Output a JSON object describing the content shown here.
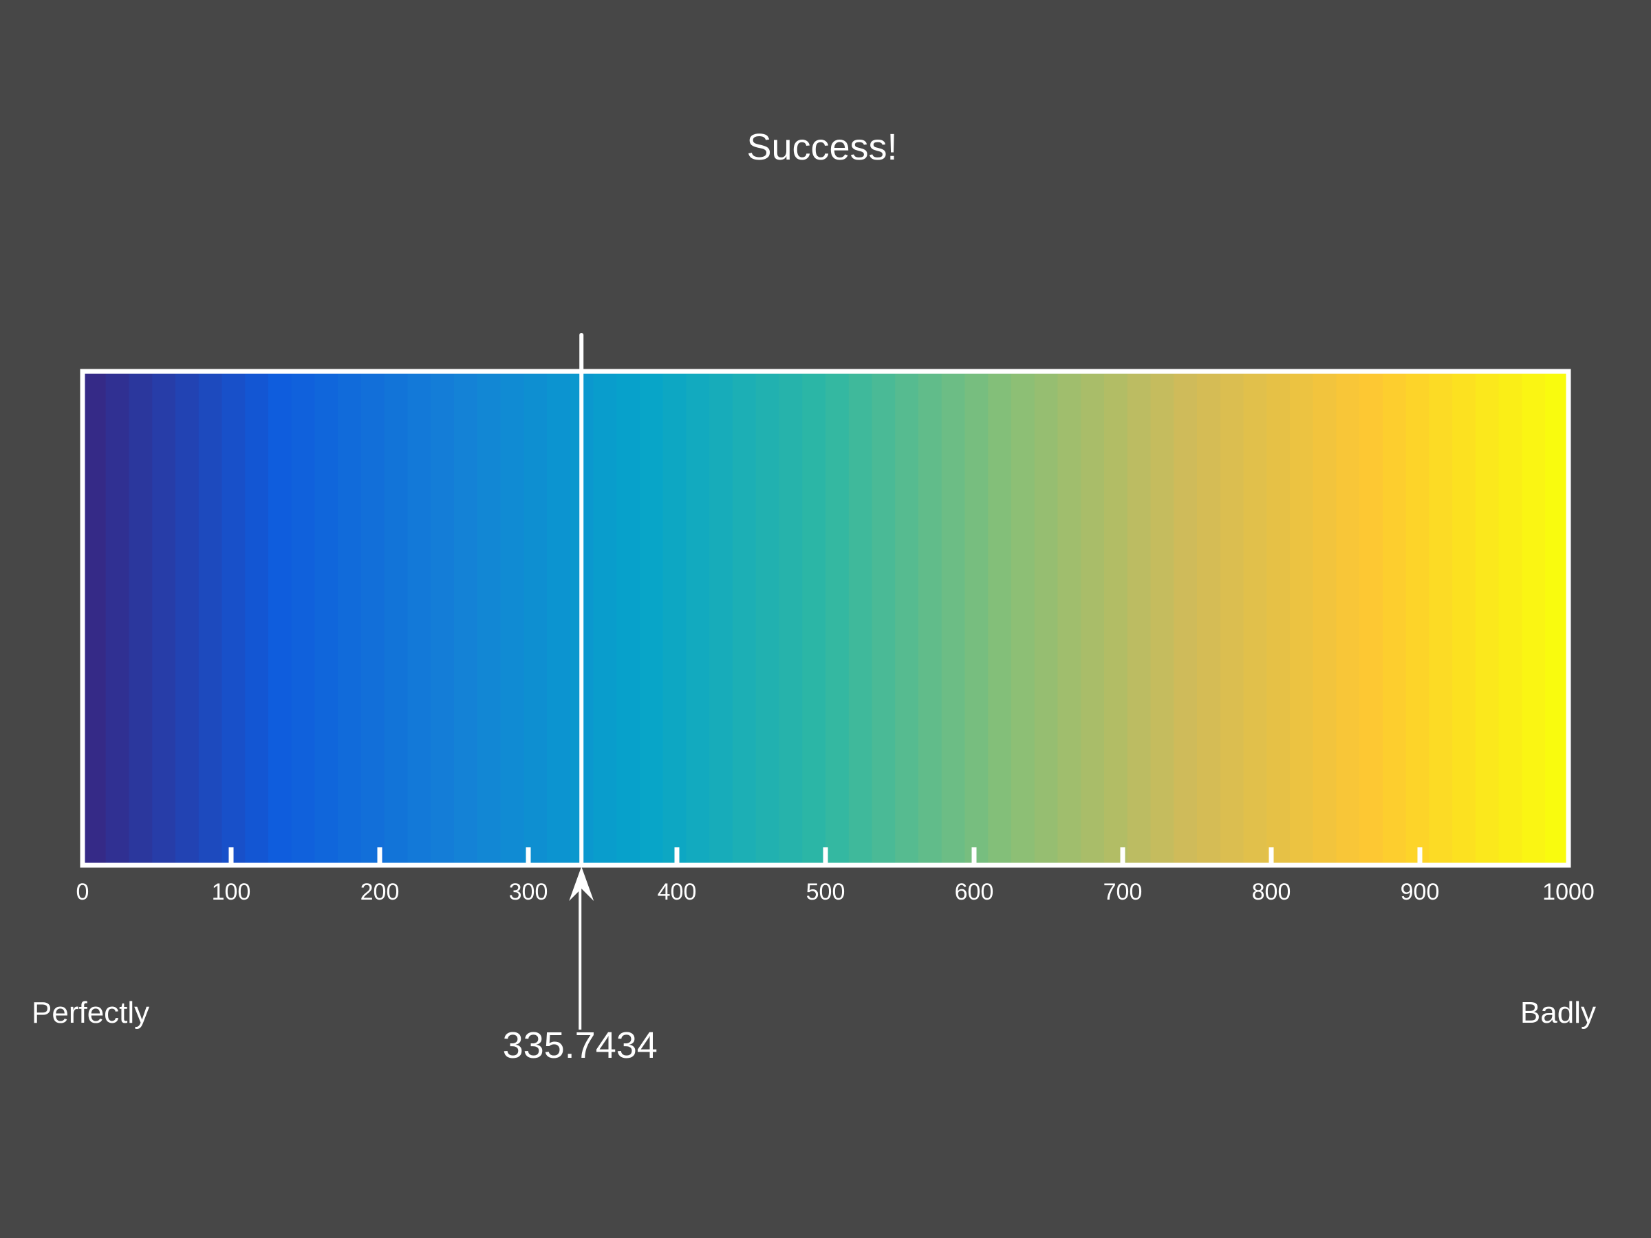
{
  "title": "Success!",
  "left_label": "Perfectly",
  "right_label": "Badly",
  "value_label": "335.7434",
  "colors": {
    "background": "#474747",
    "frame": "#ffffff",
    "colormap": [
      "#352a87",
      "#0f5cdd",
      "#1481d6",
      "#06a4ca",
      "#2eb7a4",
      "#87bf77",
      "#d1bb59",
      "#fec832",
      "#f9fb0e"
    ]
  },
  "chart_data": {
    "type": "bar",
    "title": "Success!",
    "xlim": [
      0,
      1000
    ],
    "xticks": [
      0,
      100,
      200,
      300,
      400,
      500,
      600,
      700,
      800,
      900,
      1000
    ],
    "xtick_labels": [
      "0",
      "100",
      "200",
      "300",
      "400",
      "500",
      "600",
      "700",
      "800",
      "900",
      "1000"
    ],
    "colorbar": "parula",
    "marker_value": 335.7434,
    "marker_label": "335.7434",
    "left_annotation": "Perfectly",
    "right_annotation": "Badly",
    "grid": false
  }
}
